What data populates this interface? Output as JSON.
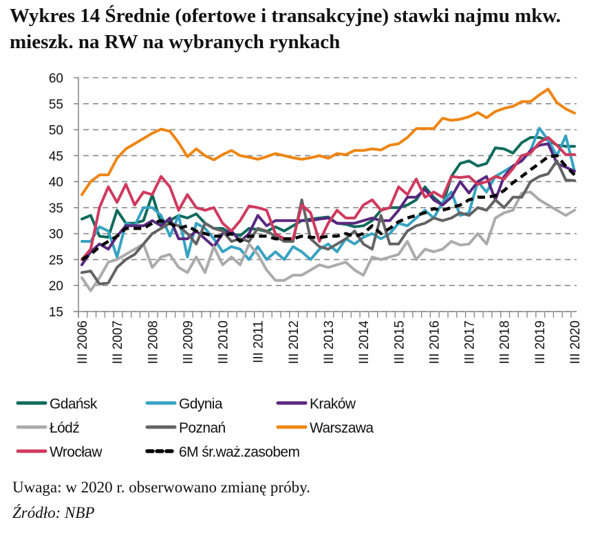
{
  "title": "Wykres 14 Średnie (ofertowe i transakcyjne) stawki najmu mkw. mieszk. na RW na wybranych rynkach",
  "note": "Uwaga: w 2020 r. obserwowano zmianę próby.",
  "source": "Źródło: NBP",
  "chart_data": {
    "type": "line",
    "title": "Wykres 14 Średnie (ofertowe i transakcyjne) stawki najmu mkw. mieszk. na RW na wybranych rynkach",
    "xlabel": "",
    "ylabel": "",
    "ylim": [
      15,
      60
    ],
    "yticks": [
      15,
      20,
      25,
      30,
      35,
      40,
      45,
      50,
      55,
      60
    ],
    "x_start": "III 2006",
    "x_end": "III 2020",
    "x_frequency": "quarterly",
    "xtick_labels": [
      "III 2006",
      "III 2007",
      "III 2008",
      "III 2009",
      "III 2010",
      "III 2011",
      "III 2012",
      "III 2013",
      "III 2014",
      "III 2015",
      "III 2016",
      "III 2017",
      "III 2018",
      "III 2019",
      "III 2020"
    ],
    "grid": "horizontal dashed",
    "legend_placement": "bottom",
    "series": [
      {
        "name": "Gdańsk",
        "color": "#0e6b5c",
        "dashed": false,
        "values": [
          32.8,
          33.5,
          29.5,
          29.3,
          34.5,
          32,
          32,
          32.5,
          37.5,
          32,
          32.5,
          33.5,
          33,
          33.8,
          32,
          31,
          31,
          30,
          29.6,
          31,
          30.8,
          30.4,
          31.3,
          30.5,
          31.5,
          32.5,
          32.8,
          33,
          33.2,
          32,
          31.8,
          31.3,
          31.5,
          32.5,
          34.5,
          35,
          35,
          35.5,
          36.5,
          39,
          37,
          35.5,
          41,
          43.5,
          44,
          43,
          43.5,
          46.5,
          46.3,
          45.5,
          47.5,
          48.5,
          48.5,
          48,
          47,
          46.8,
          46.8
        ]
      },
      {
        "name": "Gdynia",
        "color": "#37a3c2",
        "dashed": false,
        "values": [
          28.5,
          28.5,
          31.3,
          30.5,
          25.5,
          32,
          31.5,
          35,
          35,
          33.5,
          29.5,
          33.5,
          25.5,
          32,
          31,
          29,
          26.5,
          27.5,
          27,
          25,
          27.5,
          25,
          26.5,
          25,
          27.5,
          26.5,
          25,
          27,
          28,
          26.5,
          29,
          28,
          29.3,
          30,
          29,
          30,
          32,
          31.5,
          33,
          34.5,
          33,
          36,
          38,
          33.5,
          34,
          40,
          38,
          41,
          42,
          43,
          44,
          46,
          50.3,
          48,
          45,
          48.8,
          42
        ]
      },
      {
        "name": "Kraków",
        "color": "#58287f",
        "dashed": false,
        "values": [
          24,
          26.5,
          28,
          27,
          29.5,
          31.5,
          31.5,
          31.5,
          32.5,
          31.5,
          33,
          29,
          29,
          30.5,
          29,
          27.5,
          30,
          30.5,
          28.5,
          30,
          33.5,
          31.5,
          32.5,
          32.5,
          32.5,
          32.5,
          32.5,
          32.8,
          33,
          32,
          32,
          32,
          32.5,
          33,
          32.5,
          32.5,
          34.5,
          37,
          37,
          38.5,
          36.5,
          35.5,
          37,
          40,
          37.8,
          40,
          41,
          36.5,
          41,
          43,
          44,
          46,
          47,
          47.3,
          43.5,
          42.8,
          42
        ]
      },
      {
        "name": "Łódź",
        "color": "#ababab",
        "dashed": false,
        "values": [
          21.5,
          19,
          21.5,
          24.5,
          25,
          26,
          27,
          28,
          23.5,
          25.5,
          26,
          23.5,
          22.5,
          25.5,
          22.5,
          27.5,
          24,
          25.5,
          24,
          28,
          26,
          23,
          21,
          21,
          22,
          22,
          23,
          24,
          23.5,
          24,
          24.5,
          23,
          22,
          25.5,
          25,
          25.5,
          26,
          28.5,
          25,
          27,
          26.5,
          27,
          28.5,
          27.8,
          28,
          30,
          28,
          33,
          34,
          34.5,
          37.8,
          38,
          36.5,
          35.5,
          34.5,
          33.5,
          34.5
        ]
      },
      {
        "name": "Poznań",
        "color": "#636363",
        "dashed": false,
        "values": [
          22.5,
          22.8,
          20.3,
          20.5,
          23.5,
          25,
          26,
          28,
          30,
          31,
          32,
          31.5,
          30,
          28,
          32,
          31,
          30.5,
          28.5,
          29,
          28.5,
          31,
          30.5,
          29.5,
          28.5,
          28.5,
          36.5,
          29,
          27.5,
          27,
          28,
          29,
          30.5,
          28,
          27,
          33.5,
          28,
          28,
          30.5,
          31.5,
          32,
          33,
          32.5,
          33,
          34,
          33.5,
          35,
          34.5,
          36.5,
          35,
          37,
          37,
          40,
          41,
          41.5,
          44,
          40.3,
          40.2
        ]
      },
      {
        "name": "Warszawa",
        "color": "#ee8512",
        "dashed": false,
        "values": [
          37.5,
          40,
          41.3,
          41.3,
          44.5,
          46.3,
          47.3,
          48.3,
          49.3,
          50.1,
          49.7,
          47.5,
          44.8,
          46.3,
          45,
          44.2,
          45.2,
          46,
          45,
          44.7,
          44.3,
          44.8,
          45.4,
          45,
          44.6,
          44.3,
          44.6,
          45,
          44.5,
          45.4,
          45.2,
          46,
          46,
          46.3,
          46.1,
          47,
          47.3,
          48.5,
          50.2,
          50.2,
          50.2,
          52.2,
          51.8,
          52,
          52.5,
          53.3,
          52.3,
          53.5,
          54.1,
          54.5,
          55.4,
          55.4,
          56.7,
          57.8,
          55.2,
          54,
          53.2
        ]
      },
      {
        "name": "Wrocław",
        "color": "#cf3a5e",
        "dashed": false,
        "values": [
          25,
          27,
          35,
          39,
          36,
          39.5,
          35.5,
          38,
          37.5,
          41,
          39,
          34.5,
          37.5,
          35,
          34.5,
          35,
          32,
          30.5,
          32.5,
          35.3,
          35,
          34.5,
          30,
          29,
          29,
          35.5,
          34,
          28.5,
          32,
          34.5,
          33,
          33,
          35.5,
          36.5,
          34.5,
          35,
          39,
          37.5,
          40.5,
          37,
          38,
          37,
          41,
          40.8,
          41,
          39.5,
          40,
          41,
          40.5,
          42.5,
          45,
          45.5,
          47.5,
          48.5,
          47,
          45.2,
          45.2
        ]
      },
      {
        "name": "6M śr.waż.zasobem",
        "color": "#000000",
        "dashed": true,
        "values": [
          25,
          26,
          27.5,
          28.5,
          29.5,
          31,
          31,
          31,
          32,
          32.5,
          32,
          31,
          31.5,
          30.5,
          30,
          29.5,
          29.5,
          30,
          28.5,
          29.5,
          29.5,
          29.5,
          29,
          29,
          29,
          29.5,
          29.3,
          29.2,
          29.5,
          29.5,
          30,
          29.5,
          30,
          31.5,
          30,
          31,
          32.3,
          33,
          33.5,
          34,
          34.8,
          34.5,
          35,
          35.5,
          36.5,
          37,
          37,
          37.3,
          38.3,
          39.8,
          41,
          42.3,
          43.5,
          44.8,
          45,
          43,
          41.3
        ]
      }
    ]
  }
}
